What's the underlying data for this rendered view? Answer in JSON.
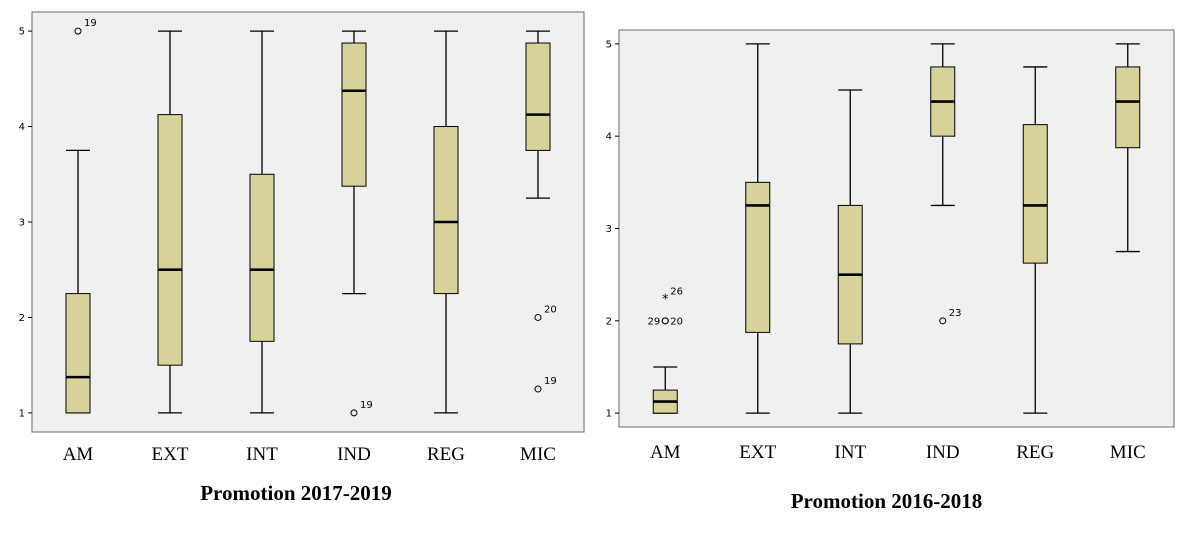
{
  "chart_data": [
    {
      "type": "boxplot",
      "title": "Promotion 2017-2019",
      "categories": [
        "AM",
        "EXT",
        "INT",
        "IND",
        "REG",
        "MIC"
      ],
      "ylim": [
        0.8,
        5.2
      ],
      "yticks": [
        1,
        2,
        3,
        4,
        5
      ],
      "grid": false,
      "box_color": "#d6d29a",
      "background_color": "#f0f0f0",
      "boxes": [
        {
          "min": 1,
          "q1": 1,
          "median": 1.375,
          "q3": 2.25,
          "max": 3.75,
          "outliers": [
            {
              "value": 5,
              "label": "19",
              "marker": "circle"
            }
          ]
        },
        {
          "min": 1,
          "q1": 1.5,
          "median": 2.5,
          "q3": 4.125,
          "max": 5,
          "outliers": []
        },
        {
          "min": 1,
          "q1": 1.75,
          "median": 2.5,
          "q3": 3.5,
          "max": 5,
          "outliers": []
        },
        {
          "min": 2.25,
          "q1": 3.375,
          "median": 4.375,
          "q3": 4.875,
          "max": 5,
          "outliers": [
            {
              "value": 1,
              "label": "19",
              "marker": "circle"
            }
          ]
        },
        {
          "min": 1,
          "q1": 2.25,
          "median": 3,
          "q3": 4,
          "max": 5,
          "outliers": []
        },
        {
          "min": 3.25,
          "q1": 3.75,
          "median": 4.125,
          "q3": 4.875,
          "max": 5,
          "outliers": [
            {
              "value": 2,
              "label": "20",
              "marker": "circle"
            },
            {
              "value": 1.25,
              "label": "19",
              "marker": "circle"
            }
          ]
        }
      ]
    },
    {
      "type": "boxplot",
      "title": "Promotion 2016-2018",
      "categories": [
        "AM",
        "EXT",
        "INT",
        "IND",
        "REG",
        "MIC"
      ],
      "ylim": [
        0.85,
        5.15
      ],
      "yticks": [
        1,
        2,
        3,
        4,
        5
      ],
      "grid": false,
      "box_color": "#d6d29a",
      "background_color": "#f0f0f0",
      "boxes": [
        {
          "min": 1,
          "q1": 1,
          "median": 1.125,
          "q3": 1.25,
          "max": 1.5,
          "outliers": [
            {
              "value": 2,
              "label": "29",
              "marker": "circle"
            },
            {
              "value": 2,
              "label": "20",
              "marker": "circle"
            },
            {
              "value": 2.25,
              "label": "26",
              "marker": "star"
            }
          ]
        },
        {
          "min": 1,
          "q1": 1.875,
          "median": 3.25,
          "q3": 3.5,
          "max": 5,
          "outliers": []
        },
        {
          "min": 1,
          "q1": 1.75,
          "median": 2.5,
          "q3": 3.25,
          "max": 4.5,
          "outliers": []
        },
        {
          "min": 3.25,
          "q1": 4,
          "median": 4.375,
          "q3": 4.75,
          "max": 5,
          "outliers": [
            {
              "value": 2,
              "label": "23",
              "marker": "circle"
            }
          ]
        },
        {
          "min": 1,
          "q1": 2.625,
          "median": 3.25,
          "q3": 4.125,
          "max": 4.75,
          "outliers": []
        },
        {
          "min": 2.75,
          "q1": 3.875,
          "median": 4.375,
          "q3": 4.75,
          "max": 5,
          "outliers": []
        }
      ]
    }
  ]
}
